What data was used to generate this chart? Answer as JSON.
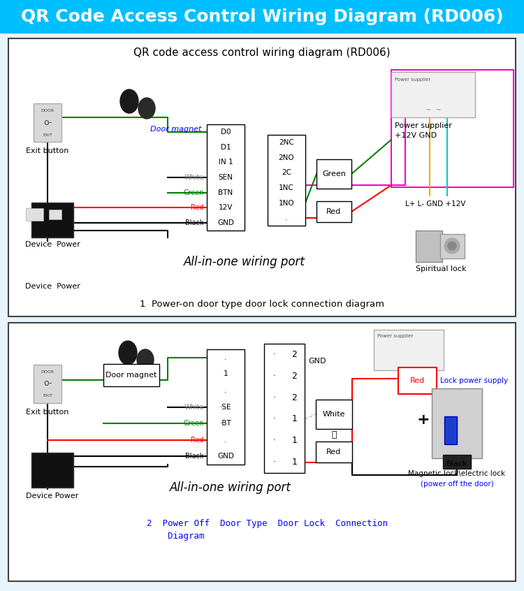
{
  "title_text": "QR Code Access Control Wiring Diagram (RD006)",
  "title_bg": "#00BFFF",
  "title_fg": "#FFFFFF",
  "title_fontsize": 18,
  "bg_color": "#E8F4FC",
  "panel_bg": "#FFFFFF",
  "panel1_title": "QR code access control wiring diagram (RD006)",
  "panel1_subtitle": "1  Power-on door type door lock connection diagram",
  "panel2_subtitle_line1": "2  Power Off  Door Type  Door Lock  Connection",
  "panel2_subtitle_line2": "    Diagram",
  "panel1_port_label": "All-in-one wiring port",
  "panel2_port_label": "All-in-one wiring port",
  "panel1_labels": {
    "exit_button": "Exit button",
    "door_magnet": "Door magnet",
    "device_power": "Device  Power",
    "power_supplier": "Power supplier",
    "plus12v_gnd": "+12V GND",
    "lplus_lminus": "L+ L- GND +12V",
    "spiritual_lock": "Spiritual lock",
    "white": "White",
    "green": "Green",
    "red": "Red",
    "black": "Black",
    "green_box": "Green",
    "red_box": "Red"
  },
  "panel2_labels": {
    "exit_button": "Exit button",
    "door_magnet": "Door magnet",
    "device_power": "Device Power",
    "gnd": "GND",
    "white_box": "White",
    "red_box": "Red",
    "lock_power": "Lock power supply",
    "magnetic_lock": "Magnetic lock\\electric lock",
    "power_off": "(power off the door)",
    "white_wire": "White",
    "green_wire": "Green",
    "red_wire": "Red",
    "black_wire": "Black",
    "black_box": "Black",
    "red_label": "Red"
  },
  "port1_rows": [
    "D0",
    "D1",
    "IN 1",
    "SEN",
    "BTN",
    "12V",
    "GND"
  ],
  "port1_right": [
    "2NC",
    "2NO",
    "2C",
    "1NC",
    "1NO",
    "."
  ],
  "port2_rows": [
    ".",
    "1",
    ".",
    "·SE",
    "·BT",
    ".",
    "GND"
  ],
  "port2_right_left": [
    "·",
    "·",
    "·",
    "·",
    "·",
    "·"
  ],
  "port2_right_right": [
    "2",
    "2",
    "2",
    "1",
    "1",
    "1"
  ]
}
